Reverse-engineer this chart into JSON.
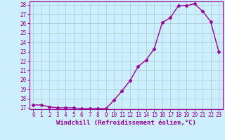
{
  "x": [
    0,
    1,
    2,
    3,
    4,
    5,
    6,
    7,
    8,
    9,
    10,
    11,
    12,
    13,
    14,
    15,
    16,
    17,
    18,
    19,
    20,
    21,
    22,
    23
  ],
  "y": [
    17.3,
    17.3,
    17.1,
    17.0,
    17.0,
    17.0,
    16.9,
    16.9,
    16.9,
    16.9,
    17.8,
    18.8,
    19.9,
    21.4,
    22.1,
    23.3,
    26.1,
    26.6,
    27.9,
    27.9,
    28.1,
    27.3,
    26.2,
    23.0
  ],
  "line_color": "#990099",
  "marker": "D",
  "marker_size": 2.5,
  "background_color": "#cceeff",
  "grid_color": "#aacccc",
  "ylim_min": 16.85,
  "ylim_max": 28.35,
  "xlim_min": -0.5,
  "xlim_max": 23.5,
  "yticks": [
    17,
    18,
    19,
    20,
    21,
    22,
    23,
    24,
    25,
    26,
    27,
    28
  ],
  "xticks": [
    0,
    1,
    2,
    3,
    4,
    5,
    6,
    7,
    8,
    9,
    10,
    11,
    12,
    13,
    14,
    15,
    16,
    17,
    18,
    19,
    20,
    21,
    22,
    23
  ],
  "xlabel": "Windchill (Refroidissement éolien,°C)",
  "xlabel_color": "#990099",
  "tick_color": "#990099",
  "spine_color": "#990099",
  "axis_label_fontsize": 6.5,
  "tick_fontsize": 5.5,
  "linewidth": 1.0
}
